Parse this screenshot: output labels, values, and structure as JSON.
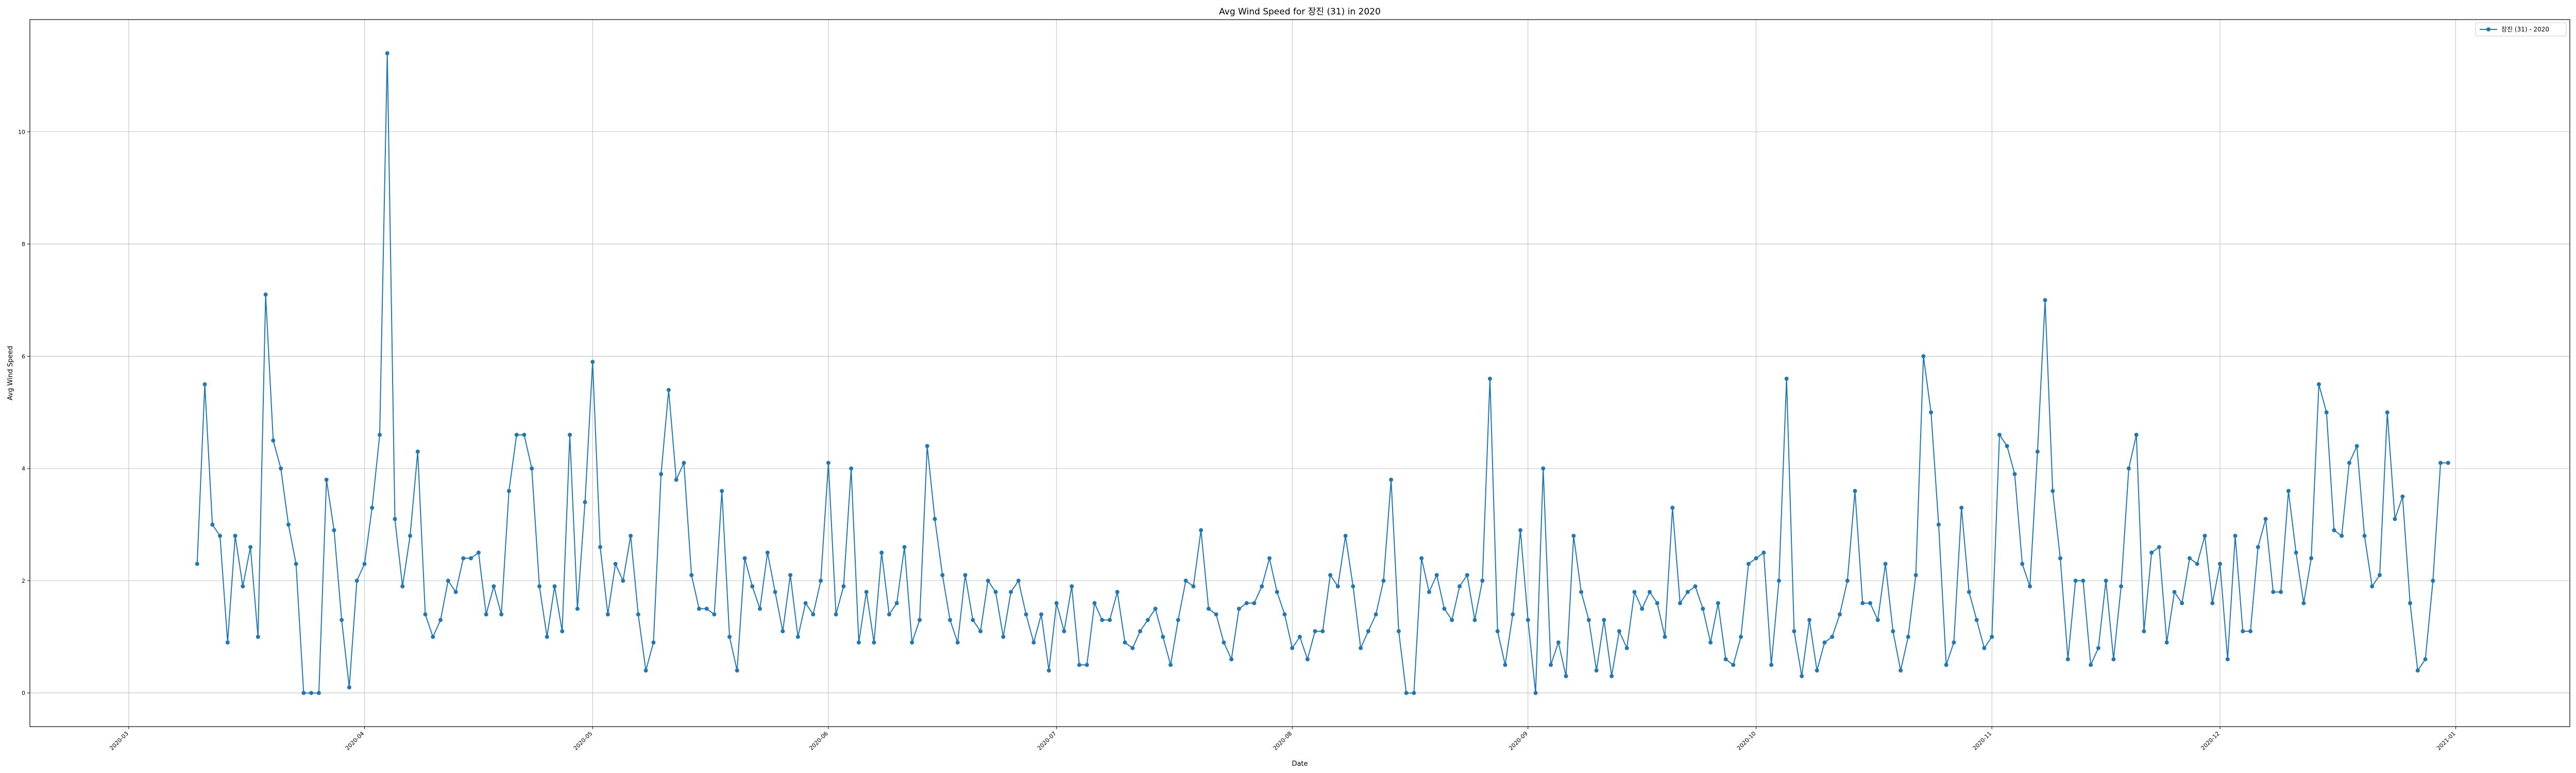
{
  "chart_data": {
    "type": "line",
    "title": "Avg Wind Speed for 장진 (31) in 2020",
    "xlabel": "Date",
    "ylabel": "Avg Wind Speed",
    "xlim": [
      "2020-02-17",
      "2021-01-16"
    ],
    "ylim": [
      -0.6,
      12.0
    ],
    "grid": true,
    "legend_position": "top-right",
    "x_ticks": [
      "2020-03",
      "2020-04",
      "2020-05",
      "2020-06",
      "2020-07",
      "2020-08",
      "2020-09",
      "2020-10",
      "2020-11",
      "2020-12",
      "2021-01"
    ],
    "y_ticks": [
      0,
      2,
      4,
      6,
      8,
      10
    ],
    "series": [
      {
        "name": "장진 (31) - 2020",
        "color": "#1f77b4",
        "marker": "circle",
        "start_date": "2020-03-10",
        "interval_days": 1,
        "values": [
          2.3,
          5.5,
          3.0,
          2.8,
          0.9,
          2.8,
          1.9,
          2.6,
          1.0,
          7.1,
          4.5,
          4.0,
          3.0,
          2.3,
          0.0,
          0.0,
          0.0,
          3.8,
          2.9,
          1.3,
          0.1,
          2.0,
          2.3,
          3.3,
          4.6,
          11.4,
          3.1,
          1.9,
          2.8,
          4.3,
          1.4,
          1.0,
          1.3,
          2.0,
          1.8,
          2.4,
          2.4,
          2.5,
          1.4,
          1.9,
          1.4,
          3.6,
          4.6,
          4.6,
          4.0,
          1.9,
          1.0,
          1.9,
          1.1,
          4.6,
          1.5,
          3.4,
          5.9,
          2.6,
          1.4,
          2.3,
          2.0,
          2.8,
          1.4,
          0.4,
          0.9,
          3.9,
          5.4,
          3.8,
          4.1,
          2.1,
          1.5,
          1.5,
          1.4,
          3.6,
          1.0,
          0.4,
          2.4,
          1.9,
          1.5,
          2.5,
          1.8,
          1.1,
          2.1,
          1.0,
          1.6,
          1.4,
          2.0,
          4.1,
          1.4,
          1.9,
          4.0,
          0.9,
          1.8,
          0.9,
          2.5,
          1.4,
          1.6,
          2.6,
          0.9,
          1.3,
          4.4,
          3.1,
          2.1,
          1.3,
          0.9,
          2.1,
          1.3,
          1.1,
          2.0,
          1.8,
          1.0,
          1.8,
          2.0,
          1.4,
          0.9,
          1.4,
          0.4,
          1.6,
          1.1,
          1.9,
          0.5,
          0.5,
          1.6,
          1.3,
          1.3,
          1.8,
          0.9,
          0.8,
          1.1,
          1.3,
          1.5,
          1.0,
          0.5,
          1.3,
          2.0,
          1.9,
          2.9,
          1.5,
          1.4,
          0.9,
          0.6,
          1.5,
          1.6,
          1.6,
          1.9,
          2.4,
          1.8,
          1.4,
          0.8,
          1.0,
          0.6,
          1.1,
          1.1,
          2.1,
          1.9,
          2.8,
          1.9,
          0.8,
          1.1,
          1.4,
          2.0,
          3.8,
          1.1,
          0.0,
          0.0,
          2.4,
          1.8,
          2.1,
          1.5,
          1.3,
          1.9,
          2.1,
          1.3,
          2.0,
          5.6,
          1.1,
          0.5,
          1.4,
          2.9,
          1.3,
          0.0,
          4.0,
          0.5,
          0.9,
          0.3,
          2.8,
          1.8,
          1.3,
          0.4,
          1.3,
          0.3,
          1.1,
          0.8,
          1.8,
          1.5,
          1.8,
          1.6,
          1.0,
          3.3,
          1.6,
          1.8,
          1.9,
          1.5,
          0.9,
          1.6,
          0.6,
          0.5,
          1.0,
          2.3,
          2.4,
          2.5,
          0.5,
          2.0,
          5.6,
          1.1,
          0.3,
          1.3,
          0.4,
          0.9,
          1.0,
          1.4,
          2.0,
          3.6,
          1.6,
          1.6,
          1.3,
          2.3,
          1.1,
          0.4,
          1.0,
          2.1,
          6.0,
          5.0,
          3.0,
          0.5,
          0.9,
          3.3,
          1.8,
          1.3,
          0.8,
          1.0,
          4.6,
          4.4,
          3.9,
          2.3,
          1.9,
          4.3,
          7.0,
          3.6,
          2.4,
          0.6,
          2.0,
          2.0,
          0.5,
          0.8,
          2.0,
          0.6,
          1.9,
          4.0,
          4.6,
          1.1,
          2.5,
          2.6,
          0.9,
          1.8,
          1.6,
          2.4,
          2.3,
          2.8,
          1.6,
          2.3,
          0.6,
          2.8,
          1.1,
          1.1,
          2.6,
          3.1,
          1.8,
          1.8,
          3.6,
          2.5,
          1.6,
          2.4,
          5.5,
          5.0,
          2.9,
          2.8,
          4.1,
          4.4,
          2.8,
          1.9,
          2.1,
          5.0,
          3.1,
          3.5,
          1.6,
          0.4,
          0.6,
          2.0,
          4.1,
          4.1
        ]
      }
    ]
  }
}
